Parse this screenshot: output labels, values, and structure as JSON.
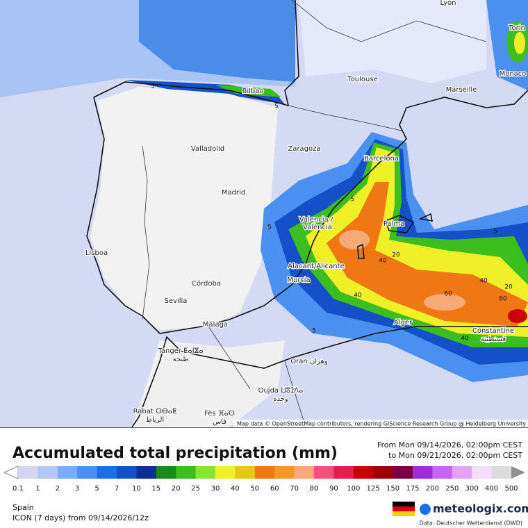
{
  "map": {
    "cities": [
      "Lyon",
      "Torin",
      "Monaco",
      "Bilbao",
      "Toulouse",
      "Marseille",
      "Valladolid",
      "Zaragoza",
      "Barcelona",
      "Madrid",
      "Valencia /",
      "València",
      "Palma",
      "Lisboa",
      "Alacant/Alicante",
      "Murcia",
      "Córdoba",
      "Sevilla",
      "Málaga",
      "Alger",
      "Constantine",
      "قسنطينة",
      "Tanger ⵟⴰⵏⴵⴰ",
      "طنجة",
      "Oran وهران",
      "Oujda ⵡⵓⵊⴷⴰ",
      "وجدة",
      "Rabat ⵔⴱⴰⵟ",
      "الرباط",
      "Fès ⴼⴰⵙ",
      "فاس"
    ],
    "contour_labels": [
      5,
      5,
      5,
      5,
      5,
      5,
      20,
      40,
      40,
      60,
      40,
      20,
      40,
      60
    ],
    "attribution": "Map data © OpenStreetMap contributors, rendering GIScience Research Group @ Heidelberg University"
  },
  "footer": {
    "title": "Accumulated total precipitation (mm)",
    "from": "From Mon 09/14/2026, 02:00pm CEST",
    "to": "to Mon 09/21/2026, 02:00pm CEST",
    "region": "Spain",
    "model": "ICON (7 days)  from  09/14/2026/12z",
    "brand": "meteologix.com",
    "source": "Data: Deutscher Wetterdienst (DWD)"
  },
  "legend": {
    "values": [
      0.1,
      1,
      2,
      3,
      5,
      7,
      10,
      15,
      20,
      25,
      30,
      40,
      50,
      60,
      70,
      80,
      90,
      100,
      125,
      150,
      175,
      200,
      250,
      300,
      400,
      500
    ],
    "colors": [
      "#d4d4f0",
      "#b4c8f8",
      "#78aef5",
      "#4a90f0",
      "#1e6ee8",
      "#1450c8",
      "#0a2e96",
      "#1a8a1a",
      "#3cbe1e",
      "#82e632",
      "#f0f028",
      "#e6c814",
      "#f07814",
      "#f5962d",
      "#f5aa78",
      "#f0507a",
      "#e61e50",
      "#c80000",
      "#a00000",
      "#780046",
      "#9b2ddc",
      "#c864f0",
      "#e6a0f5",
      "#f5dcfa",
      "#dcdcdc"
    ]
  }
}
